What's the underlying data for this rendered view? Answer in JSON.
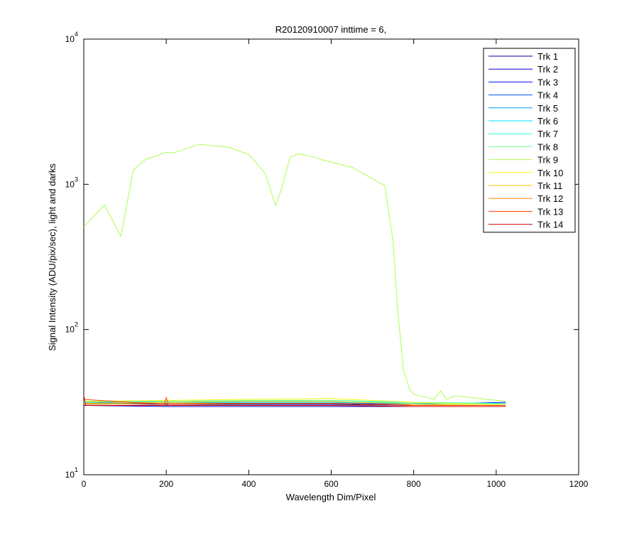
{
  "chart_data": {
    "type": "line",
    "title": "R20120910007 inttime = 6,",
    "x_label": "Wavelength Dim/Pixel",
    "y_label": "Signal Intensity (ADU/pix/sec), light and darks",
    "log_y": true,
    "grid": false,
    "legend": "top-right",
    "xlim": [
      0,
      1200
    ],
    "xticks": [
      0,
      200,
      400,
      600,
      800,
      1000,
      1200
    ],
    "ylim": [
      10,
      10000
    ],
    "yticks": [
      {
        "value": 10,
        "label": "10",
        "exponent": "1"
      },
      {
        "value": 100,
        "label": "10",
        "exponent": "2"
      },
      {
        "value": 1000,
        "label": "10",
        "exponent": "3"
      },
      {
        "value": 10000,
        "label": "10",
        "exponent": "4"
      }
    ],
    "series": [
      {
        "name": "Trk 1",
        "color": "#00008f",
        "x": [
          0,
          200,
          400,
          600,
          800,
          1023
        ],
        "values": [
          31,
          30.5,
          30.5,
          30.5,
          30,
          30
        ]
      },
      {
        "name": "Trk 2",
        "color": "#0000d0",
        "x": [
          0,
          200,
          400,
          600,
          800,
          1023
        ],
        "values": [
          30,
          29.5,
          29.5,
          29.5,
          29.5,
          29.5
        ]
      },
      {
        "name": "Trk 3",
        "color": "#0014ff",
        "x": [
          0,
          200,
          400,
          600,
          800,
          1023
        ],
        "values": [
          31.5,
          31,
          31,
          31,
          30.5,
          31.5
        ]
      },
      {
        "name": "Trk 4",
        "color": "#0058ff",
        "x": [
          0,
          200,
          400,
          600,
          800,
          1023
        ],
        "values": [
          31,
          31,
          31,
          31,
          31,
          31
        ]
      },
      {
        "name": "Trk 5",
        "color": "#009cff",
        "x": [
          0,
          200,
          400,
          600,
          800,
          1023
        ],
        "values": [
          32,
          31.5,
          31.5,
          31.5,
          31,
          31
        ]
      },
      {
        "name": "Trk 6",
        "color": "#00e0ff",
        "x": [
          0,
          200,
          400,
          600,
          800,
          1023
        ],
        "values": [
          31,
          31,
          31.5,
          31.5,
          31,
          31
        ]
      },
      {
        "name": "Trk 7",
        "color": "#25ffda",
        "x": [
          0,
          200,
          400,
          600,
          800,
          1023
        ],
        "values": [
          32,
          32,
          32,
          32.5,
          31.5,
          31
        ]
      },
      {
        "name": "Trk 8",
        "color": "#69ff96",
        "x": [
          0,
          200,
          400,
          600,
          800,
          1023
        ],
        "values": [
          31.5,
          32,
          32.5,
          32.5,
          31,
          30.5
        ]
      },
      {
        "name": "Trk 9",
        "color": "#adff52",
        "x": [
          0,
          50,
          90,
          120,
          150,
          200,
          220,
          280,
          350,
          400,
          440,
          465,
          480,
          500,
          520,
          560,
          580,
          650,
          730,
          750,
          760,
          775,
          790,
          800,
          850,
          865,
          880,
          900,
          1023
        ],
        "values": [
          508,
          721,
          438,
          1253,
          1485,
          1660,
          1650,
          1885,
          1800,
          1606,
          1186,
          713,
          944,
          1535,
          1625,
          1535,
          1468,
          1312,
          977,
          405,
          147,
          53,
          38.7,
          35.8,
          33,
          37.9,
          33,
          35,
          32
        ]
      },
      {
        "name": "Trk 10",
        "color": "#f1ff0e",
        "x": [
          0,
          200,
          400,
          600,
          800,
          1023
        ],
        "values": [
          32,
          32.5,
          33,
          33.5,
          31.5,
          30.5
        ]
      },
      {
        "name": "Trk 11",
        "color": "#ffc800",
        "x": [
          0,
          200,
          400,
          600,
          800,
          1023
        ],
        "values": [
          31,
          31.5,
          32,
          32,
          30.5,
          30
        ]
      },
      {
        "name": "Trk 12",
        "color": "#ff8400",
        "x": [
          0,
          200,
          400,
          600,
          800,
          1023
        ],
        "values": [
          30.5,
          31,
          31,
          31,
          30,
          30
        ]
      },
      {
        "name": "Trk 13",
        "color": "#ff4000",
        "x": [
          0,
          195,
          200,
          205,
          400,
          600,
          800,
          1023
        ],
        "values": [
          33,
          30.5,
          34,
          30.5,
          31,
          31,
          30,
          30
        ]
      },
      {
        "name": "Trk 14",
        "color": "#d00000",
        "x": [
          0,
          5,
          200,
          400,
          600,
          800,
          1023
        ],
        "values": [
          35,
          30,
          30,
          30,
          30,
          29.5,
          29.5
        ]
      }
    ]
  }
}
